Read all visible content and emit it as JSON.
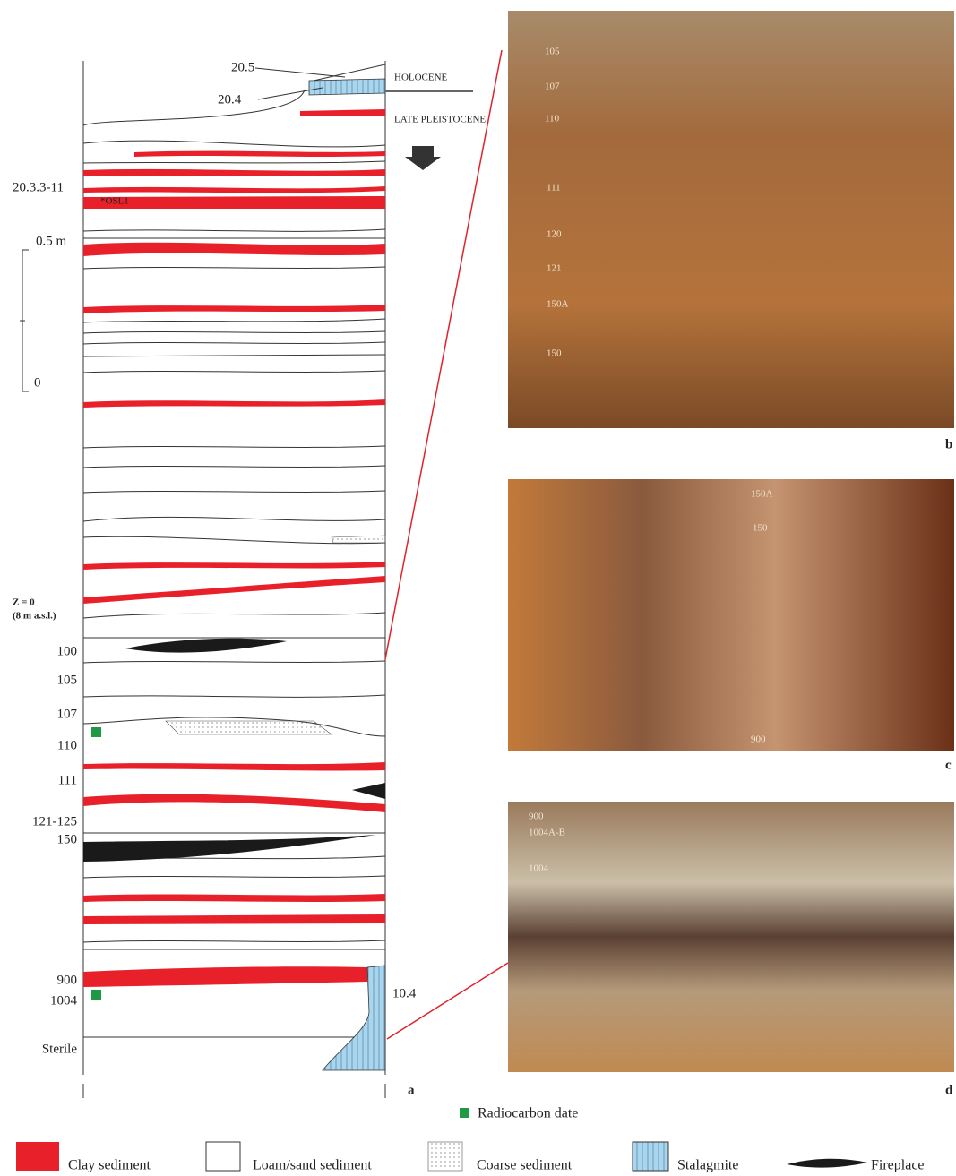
{
  "column": {
    "top_labels": {
      "a": "20.5",
      "b": "20.4"
    },
    "periods": {
      "holocene": "HOLOCENE",
      "late_pleistocene": "LATE PLEISTOCENE"
    },
    "sample": "20.3.3-11",
    "osl": "*OSL1",
    "scale": {
      "top": "0.5 m",
      "bottom": "0"
    },
    "datum": {
      "z": "Z = 0",
      "asl": "(8 m a.s.l.)"
    },
    "layers": [
      "100",
      "105",
      "107",
      "110",
      "111",
      "121-125",
      "150",
      "900",
      "1004",
      "Sterile"
    ],
    "stalagmite_label": "10.4",
    "panel": "a"
  },
  "photos": {
    "b": {
      "panel": "b",
      "labels": [
        "105",
        "107",
        "110",
        "111",
        "120",
        "121",
        "150A",
        "150"
      ]
    },
    "c": {
      "panel": "c",
      "labels": [
        "150A",
        "150",
        "900"
      ]
    },
    "d": {
      "panel": "d",
      "labels": [
        "900",
        "1004A-B",
        "1004"
      ]
    }
  },
  "legend": {
    "radiocarbon": "Radiocarbon date",
    "items": [
      "Clay sediment",
      "Loam/sand sediment",
      "Coarse sediment",
      "Stalagmite",
      "Fireplace"
    ]
  }
}
